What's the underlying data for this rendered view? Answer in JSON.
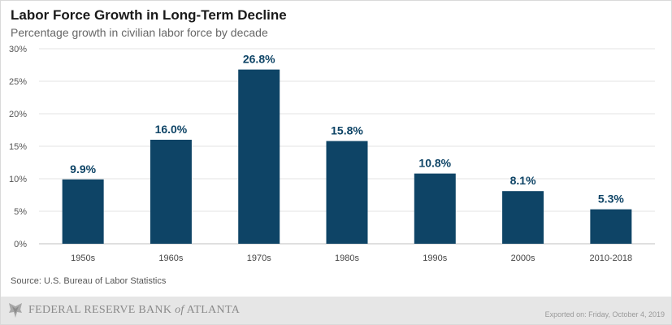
{
  "chart_data": {
    "type": "bar",
    "title": "Labor Force Growth in Long-Term Decline",
    "subtitle": "Percentage growth in civilian labor force by decade",
    "categories": [
      "1950s",
      "1960s",
      "1970s",
      "1980s",
      "1990s",
      "2000s",
      "2010-2018"
    ],
    "values": [
      9.9,
      16.0,
      26.8,
      15.8,
      10.8,
      8.1,
      5.3
    ],
    "data_labels": [
      "9.9%",
      "16.0%",
      "26.8%",
      "15.8%",
      "10.8%",
      "8.1%",
      "5.3%"
    ],
    "y_ticks": [
      0,
      5,
      10,
      15,
      20,
      25,
      30
    ],
    "y_tick_labels": [
      "0%",
      "5%",
      "10%",
      "15%",
      "20%",
      "25%",
      "30%"
    ],
    "ylim": [
      0,
      30
    ],
    "grid": true,
    "bar_color": "#0e4466",
    "label_color": "#0e4466"
  },
  "source": "Source: U.S. Bureau of Labor Statistics",
  "footer": {
    "logo_prefix": "FEDERAL RESERVE BANK ",
    "logo_of": "of",
    "logo_suffix": " ATLANTA",
    "logo_icon": "eagle-seal-icon",
    "exported": "Exported on: Friday, October 4, 2019"
  }
}
